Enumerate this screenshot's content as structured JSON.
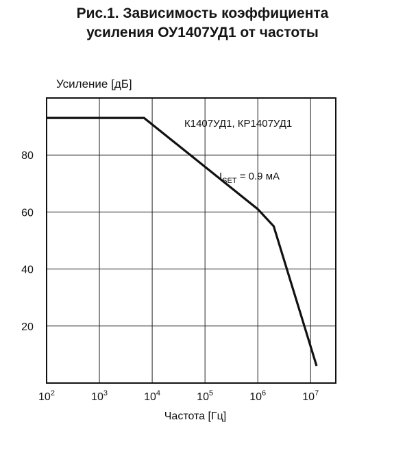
{
  "figure": {
    "title_line1": "Рис.1. Зависимость коэффициента",
    "title_line2": "усиления ОУ1407УД1 от частоты"
  },
  "chart_data": {
    "type": "line",
    "xscale": "log",
    "ylabel": "Усиление [дБ]",
    "xlabel": "Частота [Гц]",
    "xlim": [
      100,
      30000000
    ],
    "ylim": [
      0,
      100
    ],
    "grid": true,
    "x_ticks": [
      {
        "value": 100,
        "base": "10",
        "exp": "2"
      },
      {
        "value": 1000,
        "base": "10",
        "exp": "3"
      },
      {
        "value": 10000,
        "base": "10",
        "exp": "4"
      },
      {
        "value": 100000,
        "base": "10",
        "exp": "5"
      },
      {
        "value": 1000000,
        "base": "10",
        "exp": "6"
      },
      {
        "value": 10000000,
        "base": "10",
        "exp": "7"
      }
    ],
    "y_ticks": [
      {
        "value": 20,
        "label": "20"
      },
      {
        "value": 40,
        "label": "40"
      },
      {
        "value": 60,
        "label": "60"
      },
      {
        "value": 80,
        "label": "80"
      }
    ],
    "series": [
      {
        "name": "К1407УД1, КР1407УД1",
        "color": "#111111",
        "x": [
          100,
          7000,
          1000000,
          2000000,
          13000000
        ],
        "y": [
          93,
          93,
          61,
          55,
          6
        ]
      }
    ],
    "annotations": {
      "series_label": "К1407УД1, КР1407УД1",
      "condition_i": "I",
      "condition_sub": "SET",
      "condition_value": " = 0.9 мА"
    }
  }
}
